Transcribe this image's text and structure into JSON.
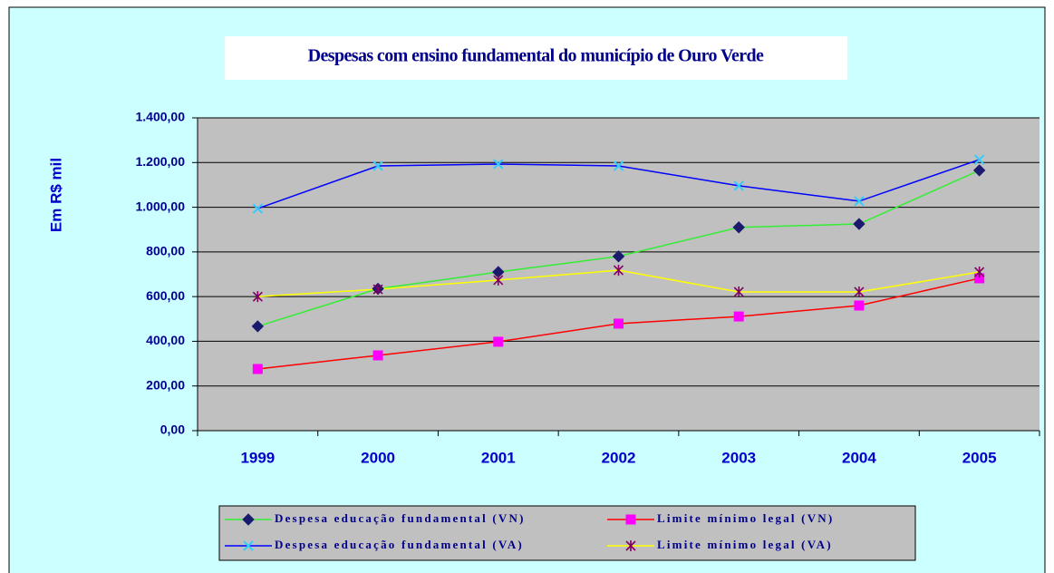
{
  "chart_data": {
    "type": "line",
    "title": "Despesas com ensino fundamental do município de Ouro Verde",
    "y_label": "Em R$ mil",
    "categories": [
      "1999",
      "2000",
      "2001",
      "2002",
      "2003",
      "2004",
      "2005"
    ],
    "series": [
      {
        "name": "Despesa educação fundamental (VN)",
        "color": "#33ee33",
        "marker": "diamond",
        "marker_color": "#1a1a6e",
        "values": [
          467,
          635,
          710,
          780,
          910,
          925,
          1165
        ]
      },
      {
        "name": "Limite mínimo legal (VN)",
        "color": "#ff0000",
        "marker": "square",
        "marker_color": "#ff00ff",
        "values": [
          276,
          337,
          398,
          479,
          511,
          560,
          682
        ]
      },
      {
        "name": "Despesa educação fundamental (VA)",
        "color": "#0000ff",
        "marker": "x",
        "marker_color": "#33ccff",
        "values": [
          994,
          1185,
          1193,
          1185,
          1096,
          1027,
          1213
        ]
      },
      {
        "name": "Limite mínimo legal (VA)",
        "color": "#ffff00",
        "marker": "star",
        "marker_color": "#800060",
        "values": [
          600,
          633,
          674,
          718,
          621,
          621,
          710
        ]
      }
    ],
    "ylim": [
      0,
      1400
    ],
    "yticks": [
      {
        "value": 0,
        "label": "0,00"
      },
      {
        "value": 200,
        "label": "200,00"
      },
      {
        "value": 400,
        "label": "400,00"
      },
      {
        "value": 600,
        "label": "600,00"
      },
      {
        "value": 800,
        "label": "800,00"
      },
      {
        "value": 1000,
        "label": "1.000,00"
      },
      {
        "value": 1200,
        "label": "1.200,00"
      },
      {
        "value": 1400,
        "label": "1.400,00"
      }
    ],
    "grid": true,
    "legend": "bottom"
  }
}
